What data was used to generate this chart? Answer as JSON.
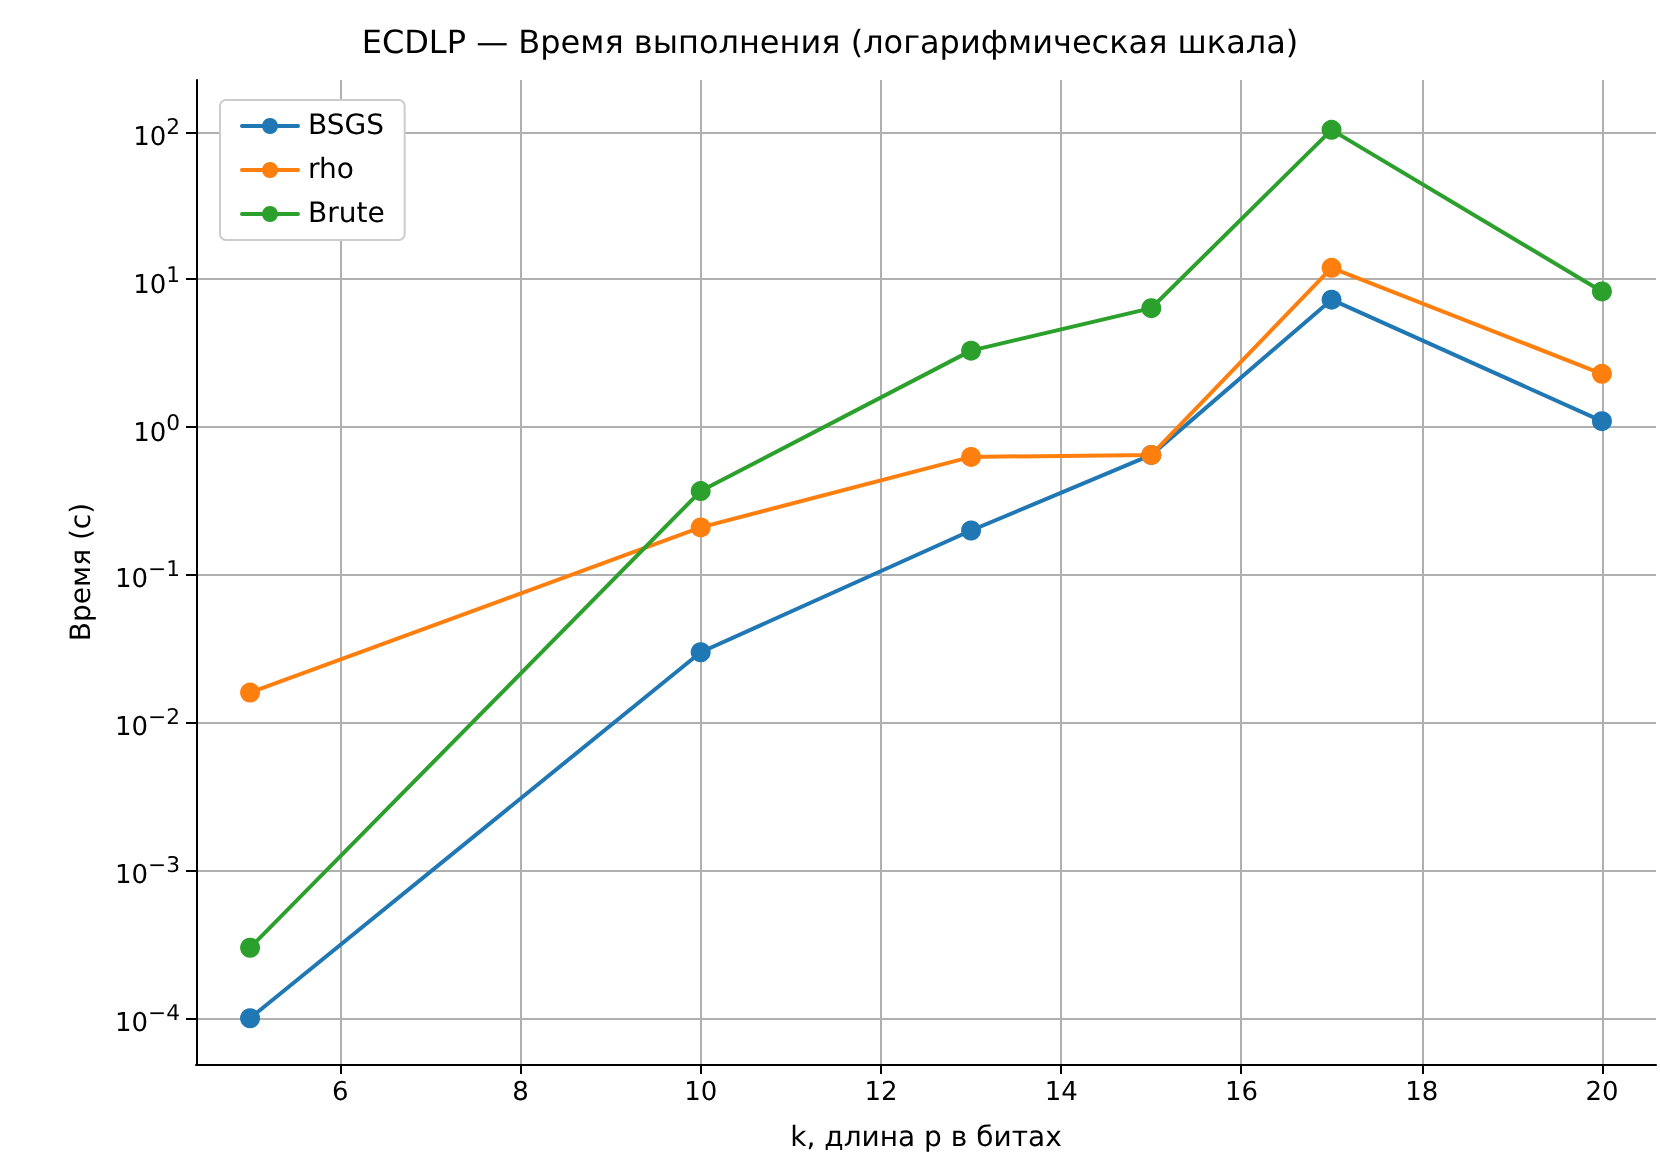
{
  "chart_data": {
    "type": "line",
    "title": "ECDLP — Время выполнения (логарифмическая шкала)",
    "xlabel": "k, длина p в битах",
    "ylabel": "Время (с)",
    "x": [
      5,
      10,
      13,
      15,
      17,
      20
    ],
    "series": [
      {
        "name": "BSGS",
        "color": "#1f77b4",
        "values": [
          0.0001,
          0.03,
          0.2,
          0.65,
          7.3,
          1.1
        ]
      },
      {
        "name": "rho",
        "color": "#ff7f0e",
        "values": [
          0.016,
          0.21,
          0.63,
          0.65,
          12,
          2.3
        ]
      },
      {
        "name": "Brute",
        "color": "#2ca02c",
        "values": [
          0.0003,
          0.37,
          3.3,
          6.4,
          103,
          8.3
        ]
      }
    ],
    "log": "y",
    "xlim": [
      4.4,
      20.6
    ],
    "ylim": [
      4.9e-05,
      224
    ],
    "xticks": [
      6,
      8,
      10,
      12,
      14,
      16,
      18,
      20
    ],
    "yticks": [
      {
        "value": 0.0001,
        "label": "10$^{−4}$"
      },
      {
        "value": 0.001,
        "label": "10$^{−3}$"
      },
      {
        "value": 0.01,
        "label": "10$^{−2}$"
      },
      {
        "value": 0.1,
        "label": "10$^{−1}$"
      },
      {
        "value": 1,
        "label": "10$^{0}$"
      },
      {
        "value": 10,
        "label": "10$^{1}$"
      },
      {
        "value": 100,
        "label": "10$^{2}$"
      }
    ],
    "grid": true,
    "legend": "top left",
    "marker": "circle",
    "line_style": "solid"
  }
}
